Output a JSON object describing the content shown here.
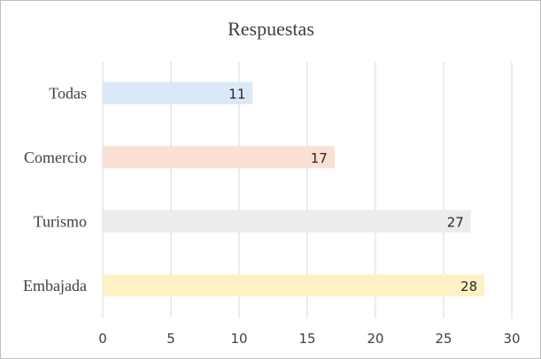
{
  "chart_data": {
    "type": "bar",
    "orientation": "horizontal",
    "title": "Respuestas",
    "categories": [
      "Todas",
      "Comercio",
      "Turismo",
      "Embajada"
    ],
    "values": [
      11,
      17,
      27,
      28
    ],
    "colors": [
      "#dae8f7",
      "#fbe0d3",
      "#ececec",
      "#fff1c6"
    ],
    "xlim": [
      0,
      30
    ],
    "x_ticks": [
      "0",
      "5",
      "10",
      "15",
      "20",
      "25",
      "30"
    ],
    "data_labels": [
      "11",
      "17",
      "27",
      "28"
    ],
    "grid": true,
    "legend": "none"
  }
}
